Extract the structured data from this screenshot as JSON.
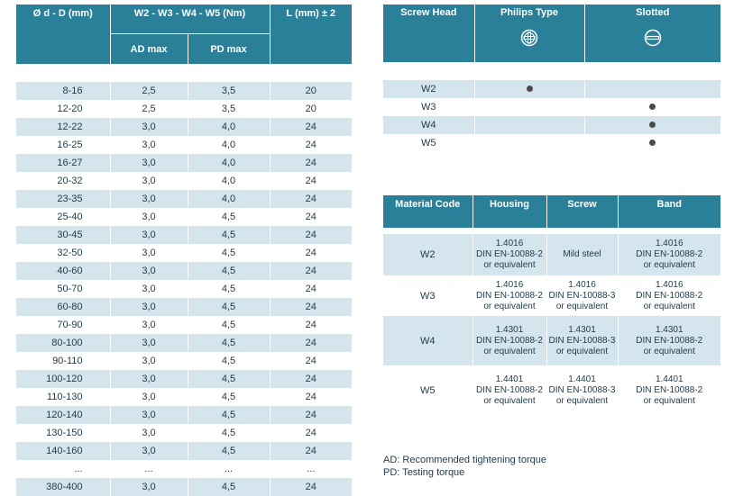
{
  "main_table": {
    "col1_header": "Ø d - D (mm)",
    "col2_header": "W2 - W3 - W4 - W5 (Nm)",
    "col2_sub_ad": "AD max",
    "col2_sub_pd": "PD max",
    "col3_header": "L (mm) ± 2",
    "rows": [
      {
        "size": "8-16",
        "ad": "2,5",
        "pd": "3,5",
        "l": "20"
      },
      {
        "size": "12-20",
        "ad": "2,5",
        "pd": "3,5",
        "l": "20"
      },
      {
        "size": "12-22",
        "ad": "3,0",
        "pd": "4,0",
        "l": "24"
      },
      {
        "size": "16-25",
        "ad": "3,0",
        "pd": "4,0",
        "l": "24"
      },
      {
        "size": "16-27",
        "ad": "3,0",
        "pd": "4,0",
        "l": "24"
      },
      {
        "size": "20-32",
        "ad": "3,0",
        "pd": "4,0",
        "l": "24"
      },
      {
        "size": "23-35",
        "ad": "3,0",
        "pd": "4,0",
        "l": "24"
      },
      {
        "size": "25-40",
        "ad": "3,0",
        "pd": "4,5",
        "l": "24"
      },
      {
        "size": "30-45",
        "ad": "3,0",
        "pd": "4,5",
        "l": "24"
      },
      {
        "size": "32-50",
        "ad": "3,0",
        "pd": "4,5",
        "l": "24"
      },
      {
        "size": "40-60",
        "ad": "3,0",
        "pd": "4,5",
        "l": "24"
      },
      {
        "size": "50-70",
        "ad": "3,0",
        "pd": "4,5",
        "l": "24"
      },
      {
        "size": "60-80",
        "ad": "3,0",
        "pd": "4,5",
        "l": "24"
      },
      {
        "size": "70-90",
        "ad": "3,0",
        "pd": "4,5",
        "l": "24"
      },
      {
        "size": "80-100",
        "ad": "3,0",
        "pd": "4,5",
        "l": "24"
      },
      {
        "size": "90-110",
        "ad": "3,0",
        "pd": "4,5",
        "l": "24"
      },
      {
        "size": "100-120",
        "ad": "3,0",
        "pd": "4,5",
        "l": "24"
      },
      {
        "size": "110-130",
        "ad": "3,0",
        "pd": "4,5",
        "l": "24"
      },
      {
        "size": "120-140",
        "ad": "3,0",
        "pd": "4,5",
        "l": "24"
      },
      {
        "size": "130-150",
        "ad": "3,0",
        "pd": "4,5",
        "l": "24"
      },
      {
        "size": "140-160",
        "ad": "3,0",
        "pd": "4,5",
        "l": "24"
      },
      {
        "size": "...",
        "ad": "...",
        "pd": "...",
        "l": "..."
      },
      {
        "size": "380-400",
        "ad": "3,0",
        "pd": "4,5",
        "l": "24"
      }
    ]
  },
  "screw_head_table": {
    "col1_header": "Screw Head",
    "col2_header": "Philips Type",
    "col3_header": "Slotted",
    "col2_icon": "philips-screw-icon",
    "col3_icon": "slotted-screw-icon",
    "rows": [
      {
        "code": "W2",
        "philips": true,
        "slotted": false
      },
      {
        "code": "W3",
        "philips": false,
        "slotted": true
      },
      {
        "code": "W4",
        "philips": false,
        "slotted": true
      },
      {
        "code": "W5",
        "philips": false,
        "slotted": true
      }
    ]
  },
  "material_table": {
    "col1_header": "Material Code",
    "col2_header": "Housing",
    "col3_header": "Screw",
    "col4_header": "Band",
    "rows": [
      {
        "code": "W2",
        "housing": [
          "1.4016",
          "DIN EN-10088-2",
          "or equivalent"
        ],
        "screw": [
          "Mild steel"
        ],
        "band": [
          "1.4016",
          "DIN EN-10088-2",
          "or equivalent"
        ]
      },
      {
        "code": "W3",
        "housing": [
          "1.4016",
          "DIN EN-10088-2",
          "or equivalent"
        ],
        "screw": [
          "1.4016",
          "DIN EN-10088-3",
          "or equivalent"
        ],
        "band": [
          "1.4016",
          "DIN EN-10088-2",
          "or equivalent"
        ]
      },
      {
        "code": "W4",
        "housing": [
          "1.4301",
          "DIN EN-10088-2",
          "or equivalent"
        ],
        "screw": [
          "1.4301",
          "DIN EN-10088-3",
          "or equivalent"
        ],
        "band": [
          "1.4301",
          "DIN EN-10088-2",
          "or equivalent"
        ]
      },
      {
        "code": "W5",
        "housing": [
          "1.4401",
          "DIN EN-10088-2",
          "or equivalent"
        ],
        "screw": [
          "1.4401",
          "DIN EN-10088-3",
          "or equivalent"
        ],
        "band": [
          "1.4401",
          "DIN EN-10088-2",
          "or equivalent"
        ]
      }
    ]
  },
  "notes": {
    "ad": "AD: Recommended tightening torque",
    "pd": "PD: Testing torque"
  },
  "colors": {
    "header": "#2a7f99",
    "row_shade": "#d5e5ee",
    "dot": "#4a4a4a"
  }
}
